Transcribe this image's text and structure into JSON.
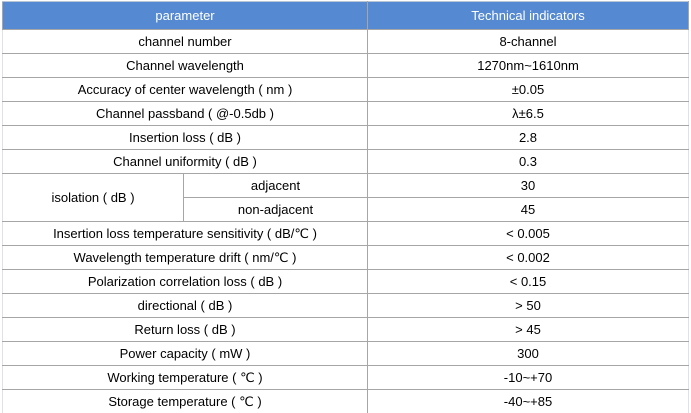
{
  "table": {
    "header": {
      "param": "parameter",
      "value": "Technical indicators"
    },
    "rows": [
      {
        "type": "simple",
        "param": "channel number",
        "value": "8-channel"
      },
      {
        "type": "simple",
        "param": "Channel wavelength",
        "value": "1270nm~1610nm"
      },
      {
        "type": "simple",
        "param": "Accuracy of center wavelength ( nm )",
        "value": "±0.05"
      },
      {
        "type": "simple",
        "param": "Channel passband ( @-0.5db )",
        "value": "λ±6.5"
      },
      {
        "type": "simple",
        "param": "Insertion loss ( dB )",
        "value": "2.8"
      },
      {
        "type": "simple",
        "param": "Channel uniformity ( dB )",
        "value": "0.3"
      },
      {
        "type": "group",
        "label": "isolation ( dB )",
        "children": [
          {
            "param": "adjacent",
            "value": "30"
          },
          {
            "param": "non-adjacent",
            "value": "45"
          }
        ]
      },
      {
        "type": "simple",
        "param": "Insertion loss temperature sensitivity ( dB/℃ )",
        "value": "< 0.005"
      },
      {
        "type": "simple",
        "param": "Wavelength temperature drift ( nm/℃ )",
        "value": "< 0.002"
      },
      {
        "type": "simple",
        "param": "Polarization correlation loss ( dB )",
        "value": "< 0.15"
      },
      {
        "type": "simple",
        "param": "directional ( dB )",
        "value": "> 50"
      },
      {
        "type": "simple",
        "param": "Return loss ( dB )",
        "value": "> 45"
      },
      {
        "type": "simple",
        "param": "Power capacity ( mW )",
        "value": "300"
      },
      {
        "type": "simple",
        "param": "Working temperature ( ℃ )",
        "value": "-10~+70"
      },
      {
        "type": "simple",
        "param": "Storage temperature ( ℃ )",
        "value": "-40~+85"
      }
    ]
  },
  "colors": {
    "header_bg": "#5589d2",
    "header_text": "#ffffff",
    "grid": "#a6a6a6",
    "text": "#000000"
  }
}
